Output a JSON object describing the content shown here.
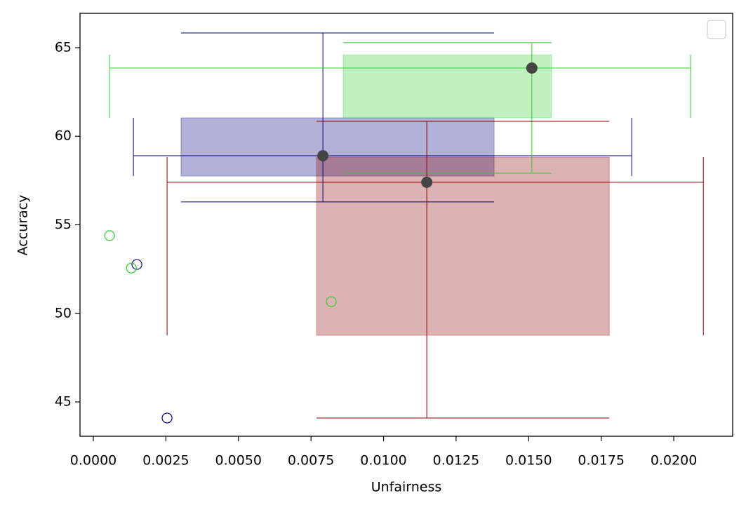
{
  "chart_data": {
    "type": "box-scatter",
    "xlabel": "Unfairness",
    "ylabel": "Accuracy",
    "xlim": [
      -0.00046,
      0.02203
    ],
    "ylim": [
      43.06,
      66.94
    ],
    "xticks": [
      {
        "value": 0,
        "label": "0.0000"
      },
      {
        "value": 0.0025,
        "label": "0.0025"
      },
      {
        "value": 0.005,
        "label": "0.0050"
      },
      {
        "value": 0.0075,
        "label": "0.0075"
      },
      {
        "value": 0.01,
        "label": "0.0100"
      },
      {
        "value": 0.0125,
        "label": "0.0125"
      },
      {
        "value": 0.015,
        "label": "0.0150"
      },
      {
        "value": 0.0175,
        "label": "0.0175"
      },
      {
        "value": 0.02,
        "label": "0.0200"
      }
    ],
    "yticks": [
      45,
      50,
      55,
      60,
      65
    ],
    "legend": "upper right",
    "center_color": "#444444",
    "series": [
      {
        "color": "#000080",
        "x": 0.00791,
        "y": 58.9,
        "x_box": [
          0.00302,
          0.01381
        ],
        "y_box": [
          57.75,
          61.04
        ],
        "x_whisker": [
          0.00138,
          0.01855
        ],
        "y_whisker": [
          56.29,
          65.83
        ],
        "outliers": {
          "x": [
            0.0015,
            0.00254
          ],
          "y": [
            52.76,
            44.09
          ]
        }
      },
      {
        "color": "#32cd32",
        "x": 0.01511,
        "y": 63.85,
        "x_box": [
          0.00861,
          0.01579
        ],
        "y_box": [
          61.04,
          64.6
        ],
        "x_whisker": [
          0.00056,
          0.02058
        ],
        "y_whisker": [
          57.91,
          65.28
        ],
        "outliers": {
          "x": [
            0.00056,
            0.00131,
            0.0082
          ],
          "y": [
            54.39,
            52.56,
            50.66
          ]
        }
      },
      {
        "color": "#8b0000",
        "x": 0.01149,
        "y": 57.4,
        "x_box": [
          0.00769,
          0.01778
        ],
        "y_box": [
          48.76,
          58.82
        ],
        "x_whisker": [
          0.00254,
          0.02102
        ],
        "y_whisker": [
          44.09,
          60.84
        ],
        "outliers": {
          "x": [],
          "y": []
        }
      }
    ]
  }
}
